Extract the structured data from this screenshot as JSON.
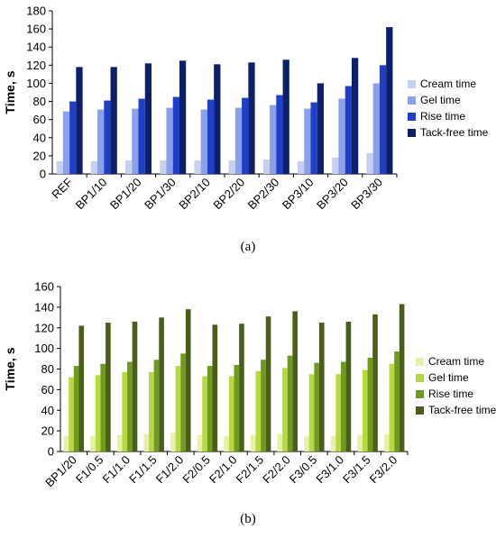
{
  "chart_data": [
    {
      "type": "bar",
      "caption": "(a)",
      "ylabel": "Time, s",
      "ylim": [
        0,
        180
      ],
      "yticks": [
        0,
        20,
        40,
        60,
        80,
        100,
        120,
        140,
        160,
        180
      ],
      "categories": [
        "REF",
        "BP1/10",
        "BP1/20",
        "BP1/30",
        "BP2/10",
        "BP2/20",
        "BP2/30",
        "BP3/10",
        "BP3/20",
        "BP3/30"
      ],
      "series": [
        {
          "name": "Cream time",
          "color": "#c8d0f0",
          "values": [
            14,
            14,
            15,
            15,
            15,
            15,
            16,
            14,
            18,
            23
          ]
        },
        {
          "name": "Gel time",
          "color": "#8aa0e8",
          "values": [
            69,
            71,
            72,
            73,
            71,
            73,
            76,
            72,
            83,
            100
          ]
        },
        {
          "name": "Rise time",
          "color": "#1f3fc8",
          "values": [
            80,
            81,
            83,
            85,
            82,
            84,
            87,
            79,
            97,
            120
          ]
        },
        {
          "name": "Tack-free time",
          "color": "#0d1f6b",
          "values": [
            118,
            118,
            122,
            125,
            121,
            123,
            126,
            100,
            128,
            162
          ]
        }
      ],
      "legend": "right",
      "grid": false
    },
    {
      "type": "bar",
      "caption": "(b)",
      "ylabel": "Time, s",
      "ylim": [
        0,
        160
      ],
      "yticks": [
        0,
        20,
        40,
        60,
        80,
        100,
        120,
        140,
        160
      ],
      "categories": [
        "BP1/20",
        "F1/0.5",
        "F1/1.0",
        "F1/1.5",
        "F1/2.0",
        "F2/0.5",
        "F2/1.0",
        "F2/1.5",
        "F2/2.0",
        "F3/0.5",
        "F3/1.0",
        "F3/1.5",
        "F3/2.0"
      ],
      "series": [
        {
          "name": "Cream time",
          "color": "#e6f2a8",
          "values": [
            15,
            15,
            16,
            17,
            18,
            16,
            15,
            16,
            17,
            15,
            15,
            16,
            17
          ]
        },
        {
          "name": "Gel time",
          "color": "#b8d840",
          "values": [
            72,
            74,
            77,
            77,
            83,
            73,
            73,
            78,
            81,
            75,
            75,
            79,
            85
          ]
        },
        {
          "name": "Rise time",
          "color": "#6f9a1e",
          "values": [
            83,
            85,
            87,
            89,
            95,
            83,
            84,
            89,
            93,
            86,
            87,
            91,
            97
          ]
        },
        {
          "name": "Tack-free time",
          "color": "#4a5e1a",
          "values": [
            122,
            125,
            126,
            130,
            138,
            123,
            124,
            131,
            136,
            125,
            126,
            133,
            143
          ]
        }
      ],
      "legend": "right",
      "grid": false
    }
  ]
}
